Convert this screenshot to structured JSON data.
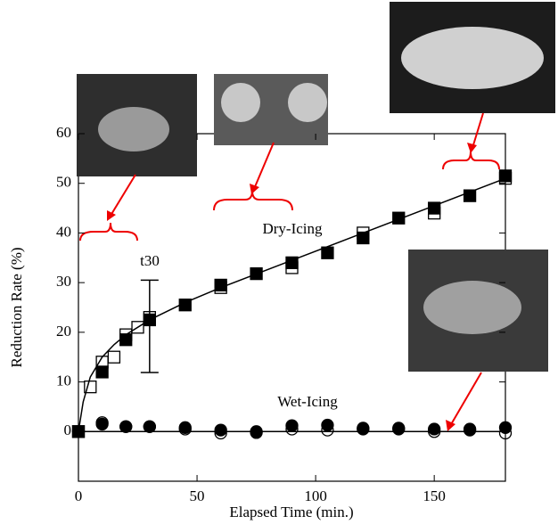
{
  "chart_data": {
    "type": "scatter",
    "xlabel": "Elapsed Time (min.)",
    "ylabel": "Reduction Rate (%)",
    "xlim": [
      0,
      180
    ],
    "xticks": [
      0,
      50,
      100,
      150
    ],
    "ylim": [
      -10,
      60
    ],
    "yticks": [
      0,
      10,
      20,
      30,
      40,
      50,
      60
    ],
    "annotations": [
      "Dry-Icing",
      "Wet-Icing",
      "t30"
    ],
    "series": [
      {
        "marker": "square",
        "filled": true,
        "color": "#000",
        "x": [
          0,
          10,
          20,
          30,
          45,
          60,
          75,
          90,
          105,
          120,
          135,
          150,
          165,
          180
        ],
        "values": [
          0,
          12,
          18.5,
          22.5,
          25.5,
          29.5,
          31.8,
          34,
          36,
          39,
          43,
          45,
          47.5,
          51.5
        ]
      },
      {
        "marker": "square",
        "filled": false,
        "color": "#000",
        "x": [
          0,
          5,
          10,
          15,
          20,
          25,
          30,
          60,
          90,
          120,
          150,
          180
        ],
        "values": [
          0,
          9,
          14,
          15,
          19.5,
          21,
          23,
          29,
          33,
          40,
          44,
          51
        ]
      },
      {
        "marker": "circle",
        "filled": true,
        "color": "#000",
        "x": [
          0,
          10,
          20,
          30,
          45,
          60,
          75,
          90,
          105,
          120,
          135,
          150,
          165,
          180
        ],
        "values": [
          0,
          1.5,
          1,
          1,
          0.8,
          0.3,
          0,
          1.2,
          1.3,
          0.7,
          0.7,
          0.5,
          0.5,
          0.8
        ]
      },
      {
        "marker": "circle",
        "filled": false,
        "color": "#000",
        "x": [
          0,
          10,
          20,
          30,
          45,
          60,
          75,
          90,
          105,
          120,
          135,
          150,
          165,
          180
        ],
        "values": [
          0,
          1.8,
          1,
          1,
          0.5,
          -0.3,
          -0.2,
          0.5,
          0.3,
          0.5,
          0.5,
          0,
          0.3,
          -0.3
        ]
      }
    ],
    "lines": [
      {
        "color": "#000",
        "x": [
          0,
          2,
          5,
          10,
          15,
          20,
          30,
          45,
          60,
          90,
          120,
          150,
          180
        ],
        "values": [
          0,
          6,
          11,
          15,
          17.5,
          19.5,
          22.5,
          26,
          29,
          34.5,
          40,
          45.5,
          51
        ]
      },
      {
        "color": "#000",
        "x": [
          0,
          180
        ],
        "values": [
          0,
          0
        ]
      }
    ],
    "error_bars": [
      {
        "x": 30,
        "value": 21.2,
        "error": 9.3
      }
    ]
  }
}
